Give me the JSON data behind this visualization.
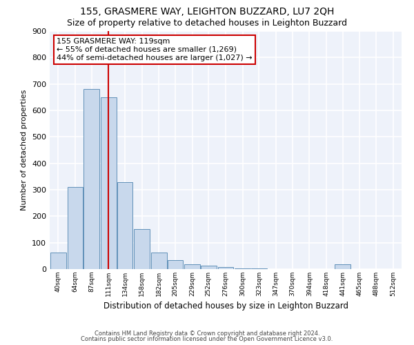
{
  "title": "155, GRASMERE WAY, LEIGHTON BUZZARD, LU7 2QH",
  "subtitle": "Size of property relative to detached houses in Leighton Buzzard",
  "xlabel": "Distribution of detached houses by size in Leighton Buzzard",
  "ylabel": "Number of detached properties",
  "bar_color": "#c8d8ec",
  "bar_edge_color": "#6090b8",
  "vline_color": "#cc0000",
  "vline_x": 111,
  "annotation_text": "155 GRASMERE WAY: 119sqm\n← 55% of detached houses are smaller (1,269)\n44% of semi-detached houses are larger (1,027) →",
  "annotation_box_color": "white",
  "annotation_box_edge": "#cc0000",
  "categories": [
    "40sqm",
    "64sqm",
    "87sqm",
    "111sqm",
    "134sqm",
    "158sqm",
    "182sqm",
    "205sqm",
    "229sqm",
    "252sqm",
    "276sqm",
    "300sqm",
    "323sqm",
    "347sqm",
    "370sqm",
    "394sqm",
    "418sqm",
    "441sqm",
    "465sqm",
    "488sqm",
    "512sqm"
  ],
  "bin_centers": [
    40,
    64,
    87,
    111,
    134,
    158,
    182,
    205,
    229,
    252,
    276,
    300,
    323,
    347,
    370,
    394,
    418,
    441,
    465,
    488,
    512
  ],
  "values": [
    62,
    310,
    680,
    650,
    330,
    152,
    62,
    35,
    18,
    12,
    8,
    3,
    3,
    0,
    0,
    0,
    0,
    18,
    0,
    0,
    0
  ],
  "ylim": [
    0,
    900
  ],
  "yticks": [
    0,
    100,
    200,
    300,
    400,
    500,
    600,
    700,
    800,
    900
  ],
  "footnote1": "Contains HM Land Registry data © Crown copyright and database right 2024.",
  "footnote2": "Contains public sector information licensed under the Open Government Licence v3.0.",
  "background_color": "#eef2fa",
  "title_fontsize": 10,
  "subtitle_fontsize": 9,
  "grid_color": "white"
}
